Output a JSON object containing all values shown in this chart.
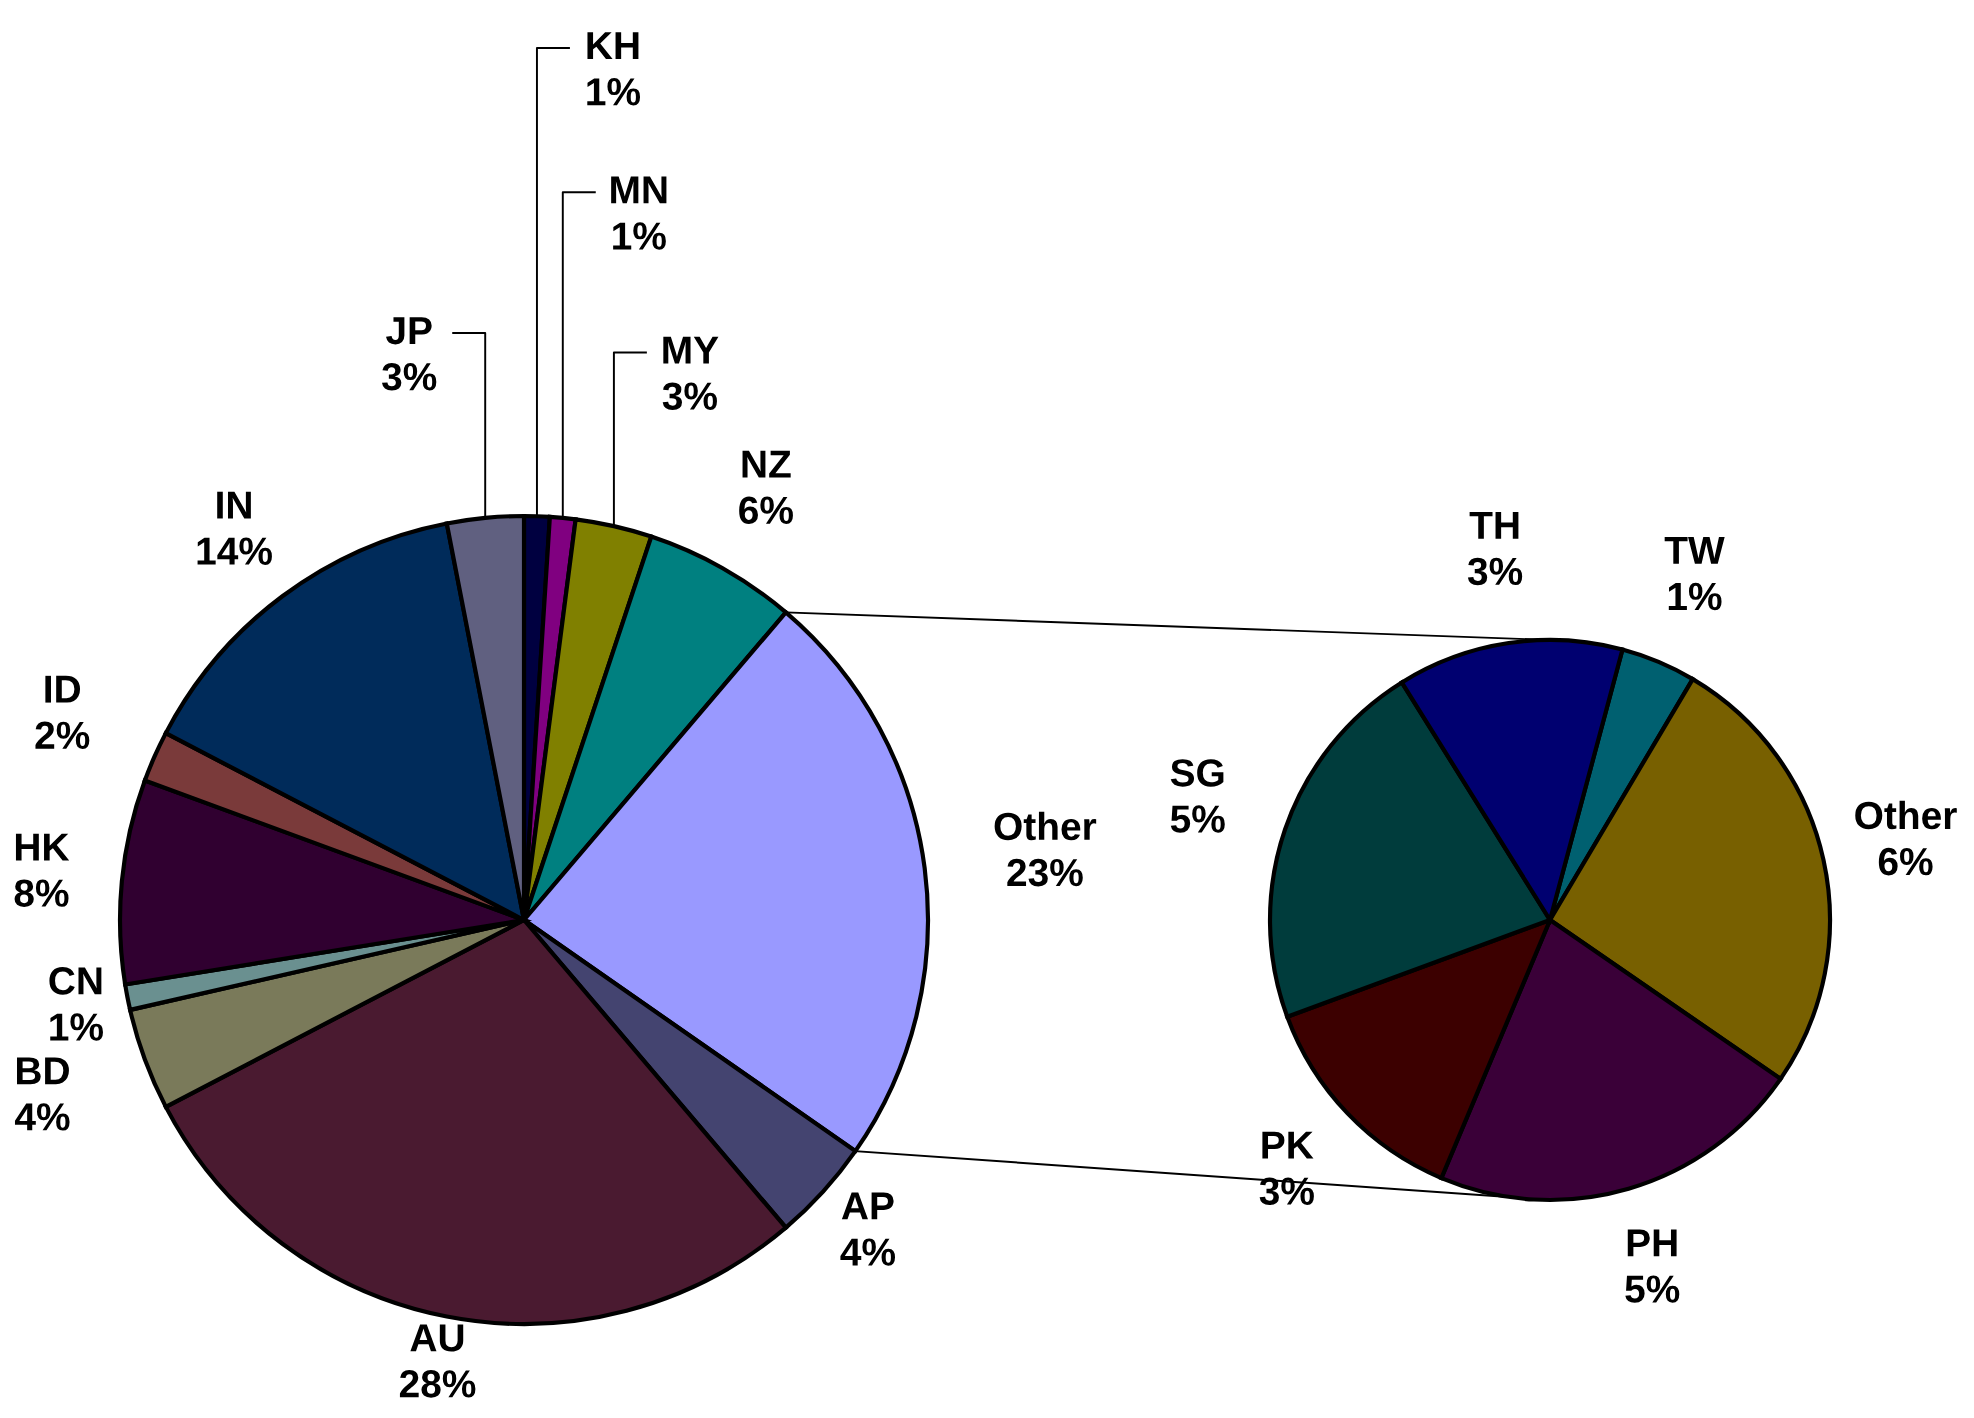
{
  "chart_data": [
    {
      "type": "pie",
      "categories": [
        "KH",
        "MN",
        "MY",
        "NZ",
        "Other",
        "AP",
        "AU",
        "BD",
        "CN",
        "HK",
        "ID",
        "IN",
        "JP"
      ],
      "values": [
        1,
        1,
        3,
        6,
        23,
        4,
        28,
        4,
        1,
        8,
        2,
        14,
        3
      ],
      "value_labels": [
        "1%",
        "1%",
        "3%",
        "6%",
        "23%",
        "4%",
        "28%",
        "4%",
        "1%",
        "8%",
        "2%",
        "14%",
        "3%"
      ],
      "colors": [
        "#000040",
        "#800080",
        "#808000",
        "#008080",
        "#9999ff",
        "#444470",
        "#4a1a30",
        "#7a7a5a",
        "#6a9090",
        "#300030",
        "#7a3a3a",
        "#002b5a",
        "#606080"
      ]
    },
    {
      "type": "pie",
      "categories": [
        "TW",
        "Other",
        "PH",
        "PK",
        "SG",
        "TH"
      ],
      "values": [
        1,
        6,
        5,
        3,
        5,
        3
      ],
      "value_labels": [
        "1%",
        "6%",
        "5%",
        "3%",
        "5%",
        "3%"
      ],
      "colors": [
        "#006070",
        "#786000",
        "#3a0038",
        "#3c0000",
        "#003c3c",
        "#000070"
      ]
    }
  ]
}
